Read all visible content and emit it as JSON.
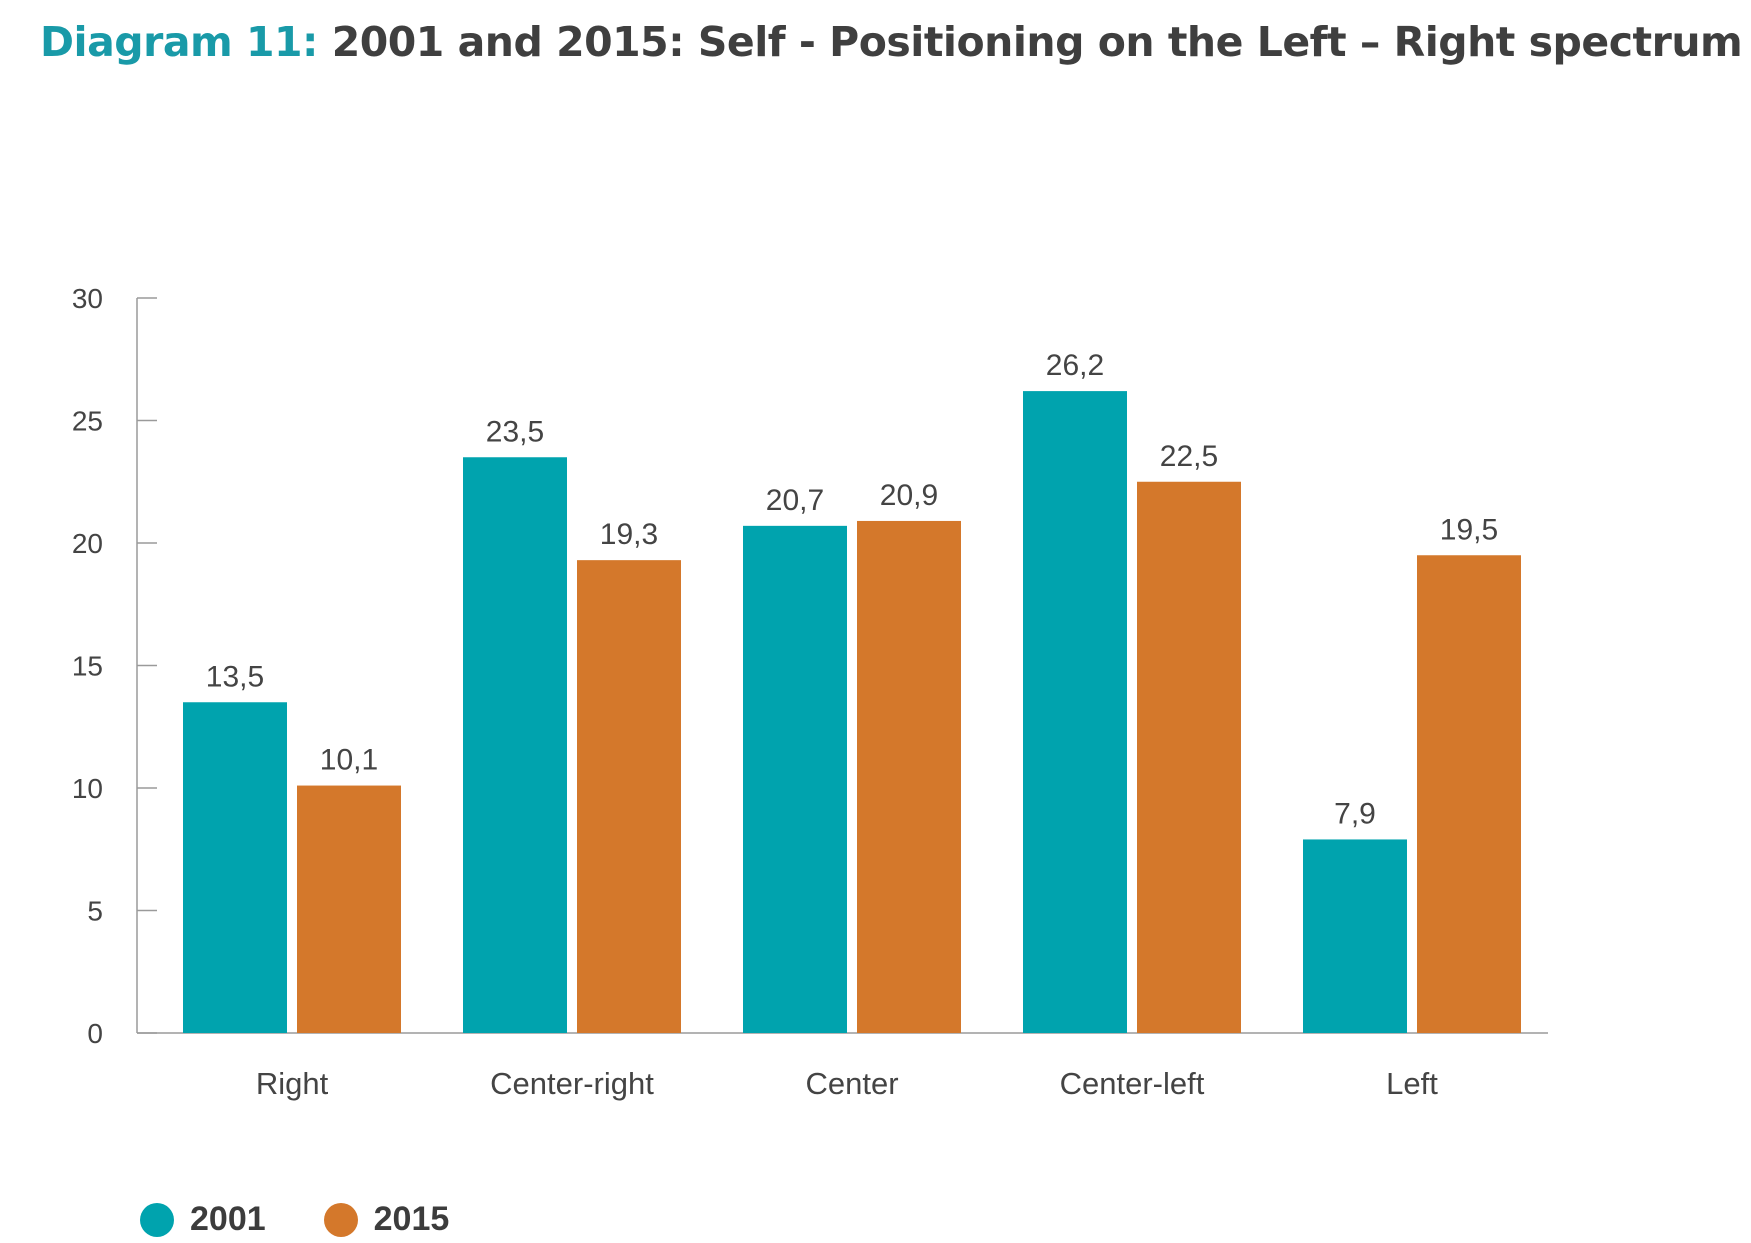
{
  "title": {
    "prefix": "Diagram 11:",
    "text": "2001 and 2015: Self - Positioning on the Left – Right spectrum"
  },
  "colors": {
    "title_accent": "#199aa8",
    "title_text": "#3f3f3f",
    "series_2001": "#00a3ae",
    "series_2015": "#d4782b",
    "axis": "#9a9a9a",
    "label_text": "#444444"
  },
  "chart_data": {
    "type": "bar",
    "categories": [
      "Right",
      "Center-right",
      "Center",
      "Center-left",
      "Left"
    ],
    "series": [
      {
        "name": "2001",
        "values": [
          13.5,
          23.5,
          20.7,
          26.2,
          7.9
        ],
        "labels": [
          "13,5",
          "23,5",
          "20,7",
          "26,2",
          "7,9"
        ],
        "color": "#00a3ae"
      },
      {
        "name": "2015",
        "values": [
          10.1,
          19.3,
          20.9,
          22.5,
          19.5
        ],
        "labels": [
          "10,1",
          "19,3",
          "20,9",
          "22,5",
          "19,5"
        ],
        "color": "#d4782b"
      }
    ],
    "ylim": [
      0,
      30
    ],
    "yticks": [
      0,
      5,
      10,
      15,
      20,
      25,
      30
    ],
    "grid": false,
    "legend_position": "bottom-left"
  },
  "legend": [
    {
      "label": "2001",
      "color": "#00a3ae"
    },
    {
      "label": "2015",
      "color": "#d4782b"
    }
  ]
}
